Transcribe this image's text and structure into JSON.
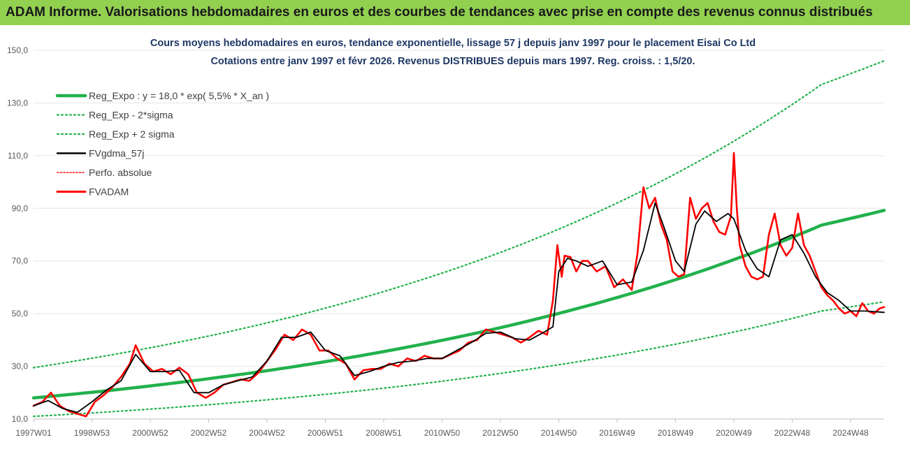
{
  "banner": {
    "title": "ADAM Informe. Valorisations hebdomadaires en euros et des courbes de tendances avec prise en compte des revenus connus distribués"
  },
  "colors": {
    "banner_bg": "#92d050",
    "reg_expo": "#22b14c",
    "band": "#22b14c",
    "fvgdma": "#000000",
    "perfo": "#ff0000",
    "fvadam": "#ff0000"
  },
  "chart_data": {
    "type": "line",
    "title_line1": "Cours moyens hebdomadaires en euros, tendance exponentielle, lissage 57 j depuis janv 1997 pour le placement Eisai Co Ltd",
    "title_line2": "Cotations entre janv 1997 et févr 2026. Revenus DISTRIBUES depuis mars 1997. Reg. croiss. : 1,5/20.",
    "x_unit": "year",
    "xlim": [
      1997.0,
      2026.15
    ],
    "ylim": [
      10,
      150
    ],
    "y_ticks": [
      "10,0",
      "30,0",
      "50,0",
      "70,0",
      "90,0",
      "110,0",
      "130,0",
      "150,0"
    ],
    "x_ticks": [
      {
        "x": 1997.0,
        "label": "1997W01"
      },
      {
        "x": 1999.0,
        "label": "1998W53"
      },
      {
        "x": 2001.0,
        "label": "2000W52"
      },
      {
        "x": 2003.0,
        "label": "2002W52"
      },
      {
        "x": 2005.0,
        "label": "2004W52"
      },
      {
        "x": 2007.0,
        "label": "2006W51"
      },
      {
        "x": 2009.0,
        "label": "2008W51"
      },
      {
        "x": 2011.0,
        "label": "2010W50"
      },
      {
        "x": 2013.0,
        "label": "2012W50"
      },
      {
        "x": 2015.0,
        "label": "2014W50"
      },
      {
        "x": 2017.0,
        "label": "2016W49"
      },
      {
        "x": 2019.0,
        "label": "2018W49"
      },
      {
        "x": 2021.0,
        "label": "2020W49"
      },
      {
        "x": 2023.0,
        "label": "2022W48"
      },
      {
        "x": 2025.0,
        "label": "2024W48"
      }
    ],
    "legend": [
      "Reg_Expo : y = 18,0 * exp( 5,5% *  X_an )",
      "Reg_Exp - 2*sigma",
      "Reg_Exp + 2 sigma",
      "FVgdma_57j",
      "Perfo. absolue",
      "FVADAM"
    ],
    "legend_position": "top-left",
    "series": [
      {
        "name": "Reg_Expo : y = 18,0 * exp( 5,5% *  X_an )",
        "x": [
          1997.0,
          2000.0,
          2003.0,
          2006.0,
          2009.0,
          2012.0,
          2015.0,
          2018.0,
          2021.0,
          2024.0,
          2026.15
        ],
        "y": [
          18.0,
          21.3,
          25.3,
          30.0,
          35.6,
          42.2,
          50.1,
          59.4,
          70.5,
          83.6,
          89.2
        ]
      },
      {
        "name": "Reg_Exp - 2*sigma",
        "x": [
          1997.0,
          2000.0,
          2003.0,
          2006.0,
          2009.0,
          2012.0,
          2015.0,
          2018.0,
          2021.0,
          2024.0,
          2026.15
        ],
        "y": [
          11.0,
          13.0,
          15.4,
          18.3,
          21.7,
          25.8,
          30.6,
          36.3,
          43.0,
          51.0,
          54.5
        ]
      },
      {
        "name": "Reg_Exp + 2 sigma",
        "x": [
          1997.0,
          2000.0,
          2003.0,
          2006.0,
          2009.0,
          2012.0,
          2015.0,
          2018.0,
          2021.0,
          2024.0,
          2026.15
        ],
        "y": [
          29.5,
          35.0,
          41.5,
          49.2,
          58.4,
          69.2,
          82.1,
          97.4,
          115.5,
          137.0,
          146.0
        ]
      },
      {
        "name": "FVgdma_57j",
        "x": [
          1997.0,
          1997.5,
          1998.0,
          1998.5,
          1999.0,
          1999.5,
          2000.0,
          2000.5,
          2001.0,
          2001.5,
          2002.0,
          2002.5,
          2003.0,
          2003.5,
          2004.0,
          2004.5,
          2005.0,
          2005.5,
          2006.0,
          2006.5,
          2007.0,
          2007.5,
          2008.0,
          2008.5,
          2009.0,
          2009.5,
          2010.0,
          2010.5,
          2011.0,
          2011.5,
          2012.0,
          2012.5,
          2013.0,
          2013.5,
          2014.0,
          2014.5,
          2014.8,
          2015.0,
          2015.3,
          2015.6,
          2016.0,
          2016.5,
          2017.0,
          2017.5,
          2017.9,
          2018.3,
          2018.6,
          2019.0,
          2019.3,
          2019.7,
          2020.0,
          2020.4,
          2020.8,
          2021.0,
          2021.4,
          2021.8,
          2022.2,
          2022.6,
          2023.0,
          2023.4,
          2023.8,
          2024.2,
          2024.6,
          2025.0,
          2025.5,
          2026.15
        ],
        "y": [
          15.0,
          17.0,
          14.0,
          12.5,
          16.5,
          21.0,
          24.5,
          34.5,
          28.0,
          28.0,
          28.5,
          20.0,
          20.0,
          23.0,
          24.5,
          26.0,
          32.0,
          41.0,
          41.0,
          43.0,
          36.0,
          34.0,
          26.5,
          28.0,
          30.0,
          31.5,
          32.0,
          33.0,
          33.0,
          36.0,
          39.0,
          42.5,
          43.0,
          40.5,
          40.0,
          43.0,
          45.0,
          66.0,
          71.0,
          70.0,
          68.0,
          70.0,
          61.0,
          62.0,
          74.0,
          92.0,
          83.0,
          70.0,
          66.0,
          84.0,
          89.0,
          85.0,
          88.0,
          86.0,
          74.0,
          67.0,
          64.0,
          78.0,
          80.0,
          73.0,
          64.0,
          58.0,
          55.0,
          51.0,
          51.0,
          50.5
        ]
      },
      {
        "name": "FVADAM",
        "x": [
          1997.0,
          1997.3,
          1997.6,
          1997.9,
          1998.2,
          1998.5,
          1998.8,
          1999.1,
          1999.4,
          1999.7,
          2000.0,
          2000.3,
          2000.5,
          2000.8,
          2001.1,
          2001.4,
          2001.7,
          2002.0,
          2002.3,
          2002.6,
          2002.9,
          2003.2,
          2003.5,
          2003.8,
          2004.1,
          2004.4,
          2004.7,
          2005.0,
          2005.3,
          2005.6,
          2005.9,
          2006.2,
          2006.5,
          2006.8,
          2007.1,
          2007.4,
          2007.7,
          2008.0,
          2008.3,
          2008.6,
          2008.9,
          2009.2,
          2009.5,
          2009.8,
          2010.1,
          2010.4,
          2010.7,
          2011.0,
          2011.3,
          2011.6,
          2011.9,
          2012.2,
          2012.5,
          2012.8,
          2013.1,
          2013.4,
          2013.7,
          2014.0,
          2014.3,
          2014.6,
          2014.8,
          2014.95,
          2015.1,
          2015.2,
          2015.4,
          2015.6,
          2015.8,
          2016.0,
          2016.3,
          2016.6,
          2016.9,
          2017.2,
          2017.5,
          2017.7,
          2017.9,
          2018.1,
          2018.3,
          2018.5,
          2018.7,
          2018.9,
          2019.1,
          2019.3,
          2019.5,
          2019.7,
          2019.9,
          2020.1,
          2020.3,
          2020.5,
          2020.7,
          2020.9,
          2021.0,
          2021.1,
          2021.2,
          2021.4,
          2021.6,
          2021.8,
          2022.0,
          2022.2,
          2022.4,
          2022.6,
          2022.8,
          2023.0,
          2023.2,
          2023.4,
          2023.6,
          2023.8,
          2024.0,
          2024.2,
          2024.4,
          2024.6,
          2024.8,
          2025.0,
          2025.2,
          2025.4,
          2025.6,
          2025.8,
          2026.0,
          2026.15
        ],
        "y": [
          15.0,
          16.5,
          20.0,
          15.0,
          13.0,
          12.0,
          11.0,
          16.5,
          19.0,
          22.0,
          26.0,
          31.0,
          38.0,
          31.0,
          28.0,
          29.0,
          27.0,
          29.5,
          27.0,
          20.0,
          18.0,
          20.0,
          23.0,
          24.0,
          25.0,
          24.5,
          27.5,
          32.0,
          36.5,
          42.0,
          40.0,
          44.0,
          42.0,
          36.0,
          36.0,
          33.0,
          31.0,
          25.0,
          28.5,
          29.0,
          29.0,
          31.0,
          30.0,
          33.0,
          32.0,
          34.0,
          33.0,
          33.0,
          34.5,
          36.0,
          39.0,
          40.0,
          44.0,
          43.0,
          42.0,
          41.0,
          39.0,
          41.0,
          43.5,
          42.0,
          55.0,
          76.0,
          64.0,
          72.0,
          71.5,
          66.0,
          70.0,
          70.0,
          66.0,
          68.0,
          60.0,
          63.0,
          59.0,
          73.0,
          98.0,
          90.0,
          94.0,
          84.0,
          78.0,
          66.0,
          64.0,
          65.0,
          94.0,
          86.0,
          90.0,
          92.0,
          85.0,
          81.0,
          80.0,
          87.0,
          111.0,
          90.0,
          76.0,
          68.0,
          64.0,
          63.0,
          64.0,
          80.0,
          88.0,
          76.0,
          72.0,
          75.0,
          88.0,
          76.0,
          72.0,
          66.0,
          60.0,
          57.0,
          55.0,
          52.0,
          50.0,
          51.0,
          49.0,
          54.0,
          51.0,
          50.0,
          52.0,
          52.5
        ]
      }
    ]
  }
}
